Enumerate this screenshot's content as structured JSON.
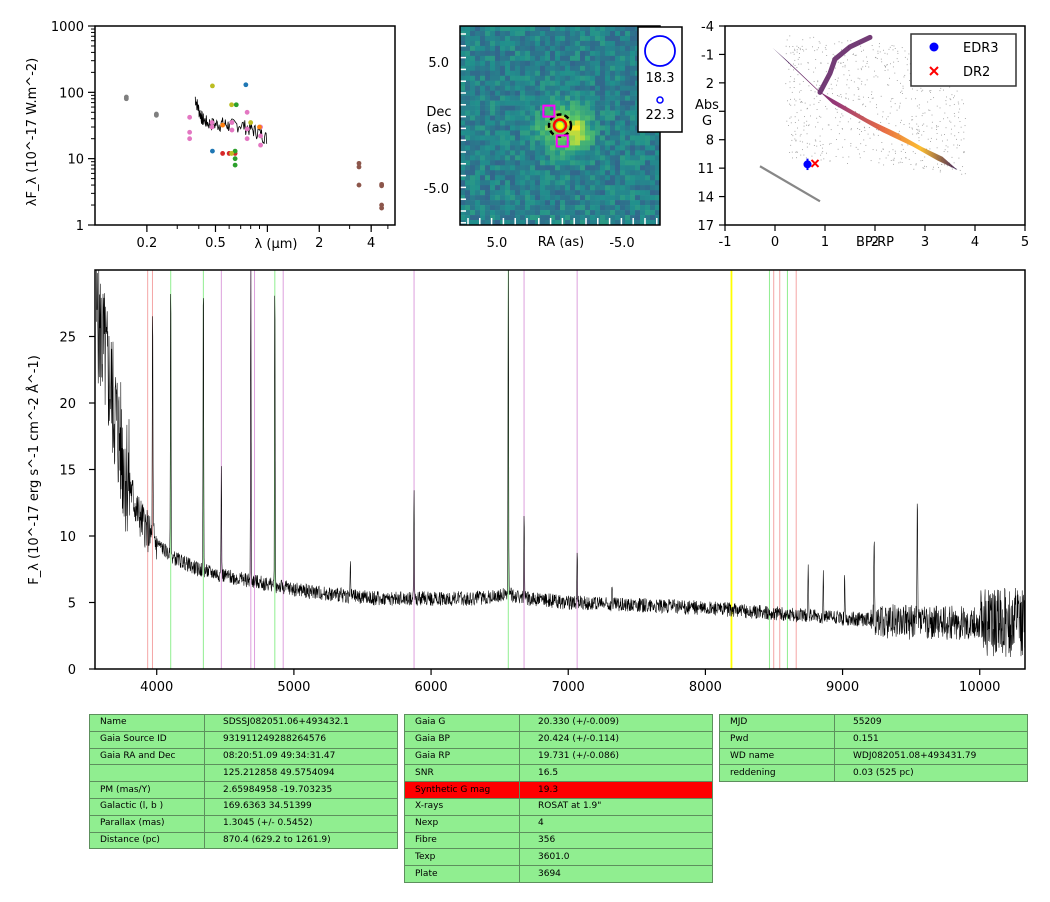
{
  "sed_panel": {
    "ylabel": "λF_λ (10^-17 W.m^-2)",
    "xlabel": "λ (μm)",
    "y_ticks": [
      "1",
      "10",
      "100",
      "1000"
    ],
    "x_ticks": [
      "0.2",
      "0.5",
      "1",
      "2",
      "4"
    ]
  },
  "image_panel": {
    "xlabel": "RA (as)",
    "ylabel_line1": "Dec",
    "ylabel_line2": "(as)",
    "x_ticks": [
      "5.0",
      "-5.0"
    ],
    "y_ticks": [
      "5.0",
      "-5.0"
    ],
    "legend": [
      {
        "label": "18.3"
      },
      {
        "label": "22.3"
      }
    ]
  },
  "hr_panel": {
    "xlabel": "BP-RP",
    "ylabel_line1": "Abs",
    "ylabel_line2": "G",
    "x_ticks": [
      "-1",
      "0",
      "1",
      "2",
      "3",
      "4",
      "5"
    ],
    "y_ticks": [
      "-4",
      "-1",
      "2",
      "5",
      "8",
      "11",
      "14",
      "17"
    ],
    "legend": [
      {
        "label": "EDR3",
        "color": "#0000ff",
        "marker": "circle"
      },
      {
        "label": "DR2",
        "color": "#ff0000",
        "marker": "cross"
      }
    ]
  },
  "spectrum_panel": {
    "ylabel": "F_λ (10^-17 erg s^-1 cm^-2 Å^-1)",
    "x_ticks": [
      "4000",
      "5000",
      "6000",
      "7000",
      "8000",
      "9000",
      "10000"
    ],
    "y_ticks": [
      "0",
      "5",
      "10",
      "15",
      "20",
      "25"
    ]
  },
  "chart_data": [
    {
      "type": "scatter",
      "title": "",
      "xlabel": "λ (μm)",
      "ylabel": "λF_λ (10^-17 W.m^-2)",
      "xscale": "log",
      "yscale": "log",
      "xlim": [
        0.1,
        5.5
      ],
      "ylim": [
        1,
        1000
      ],
      "series": [
        {
          "color": "#7f7f7f",
          "points": [
            [
              0.152,
              80
            ],
            [
              0.152,
              85
            ],
            [
              0.227,
              45
            ],
            [
              0.227,
              47
            ]
          ]
        },
        {
          "color": "#e377c2",
          "points": [
            [
              0.354,
              20
            ],
            [
              0.354,
              25
            ],
            [
              0.354,
              42
            ],
            [
              0.477,
              30
            ],
            [
              0.477,
              35
            ],
            [
              0.623,
              27
            ],
            [
              0.623,
              35
            ],
            [
              0.763,
              20
            ],
            [
              0.763,
              28
            ],
            [
              0.763,
              50
            ],
            [
              0.913,
              16
            ],
            [
              0.913,
              22
            ],
            [
              0.913,
              30
            ]
          ]
        },
        {
          "color": "#1f77b4",
          "points": [
            [
              0.48,
              13
            ],
            [
              0.75,
              130
            ]
          ]
        },
        {
          "color": "#d62728",
          "points": [
            [
              0.55,
              12
            ],
            [
              0.6,
              12
            ],
            [
              0.65,
              12
            ]
          ]
        },
        {
          "color": "#2ca02c",
          "points": [
            [
              0.65,
              8
            ],
            [
              0.65,
              10
            ],
            [
              0.65,
              13
            ],
            [
              0.66,
              65
            ]
          ]
        },
        {
          "color": "#bcbd22",
          "points": [
            [
              0.48,
              125
            ],
            [
              0.62,
              12
            ],
            [
              0.62,
              65
            ],
            [
              0.8,
              35
            ]
          ]
        },
        {
          "color": "#ff7f0e",
          "points": [
            [
              0.55,
              32
            ],
            [
              0.9,
              30
            ]
          ]
        },
        {
          "color": "#8c564b",
          "points": [
            [
              3.4,
              4
            ],
            [
              3.4,
              7.5
            ],
            [
              3.4,
              8.5
            ],
            [
              4.6,
              1.8
            ],
            [
              4.6,
              2
            ],
            [
              4.6,
              3.9
            ],
            [
              4.6,
              4.1
            ]
          ]
        }
      ],
      "line_series": {
        "color": "#000000",
        "x": [
          0.38,
          0.4,
          0.42,
          0.45,
          0.5,
          0.55,
          0.6,
          0.7,
          0.8,
          0.9,
          1.0
        ],
        "y": [
          85,
          55,
          40,
          35,
          33,
          34,
          32,
          33,
          28,
          25,
          20
        ]
      }
    },
    {
      "type": "heatmap",
      "title": "",
      "xlabel": "RA (as)",
      "ylabel": "Dec (as)",
      "xlim": [
        9,
        -9
      ],
      "ylim": [
        -9,
        9
      ],
      "markers": [
        {
          "kind": "target-cross",
          "ra": 0,
          "dec": 0,
          "color": "#ffff00"
        },
        {
          "kind": "circle",
          "ra": 0,
          "dec": 0,
          "color": "#ff0000"
        },
        {
          "kind": "square",
          "ra": 1.0,
          "dec": 1.3,
          "color": "#ff00ff"
        },
        {
          "kind": "square",
          "ra": -0.2,
          "dec": -1.4,
          "color": "#ff00ff"
        }
      ],
      "legend": [
        {
          "label": "18.3",
          "size": "large"
        },
        {
          "label": "22.3",
          "size": "small"
        }
      ]
    },
    {
      "type": "scatter",
      "title": "",
      "xlabel": "BP-RP",
      "ylabel": "Abs G",
      "xlim": [
        -1,
        5
      ],
      "ylim": [
        17,
        -4
      ],
      "series": [
        {
          "name": "EDR3",
          "color": "#0000ff",
          "marker": "circle",
          "points": [
            [
              0.65,
              10.6
            ]
          ],
          "yerr": [
            0.6
          ],
          "xerr": [
            0.08
          ]
        },
        {
          "name": "DR2",
          "color": "#ff0000",
          "marker": "cross",
          "points": [
            [
              0.8,
              10.5
            ]
          ]
        }
      ],
      "background": "Gaia HR diagram density (inferno colormap)"
    },
    {
      "type": "line",
      "title": "",
      "xlabel": "",
      "ylabel": "F_λ (10^-17 erg s^-1 cm^-2 Å^-1)",
      "xlim": [
        3550,
        10330
      ],
      "ylim": [
        0,
        30
      ],
      "continuum": [
        [
          3560,
          27
        ],
        [
          3650,
          22
        ],
        [
          3750,
          16
        ],
        [
          3850,
          12
        ],
        [
          3950,
          10
        ],
        [
          4100,
          8.5
        ],
        [
          4300,
          7.5
        ],
        [
          4500,
          7
        ],
        [
          4800,
          6.4
        ],
        [
          5000,
          6
        ],
        [
          5300,
          5.6
        ],
        [
          5600,
          5.3
        ],
        [
          6000,
          5.3
        ],
        [
          6300,
          5.3
        ],
        [
          6560,
          5.6
        ],
        [
          6700,
          5.3
        ],
        [
          7000,
          5.0
        ],
        [
          7500,
          4.8
        ],
        [
          8000,
          4.6
        ],
        [
          8500,
          4.2
        ],
        [
          9000,
          3.8
        ],
        [
          9500,
          3.5
        ],
        [
          10000,
          3.5
        ],
        [
          10300,
          3.5
        ]
      ],
      "emission_lines": [
        {
          "wl": 3970,
          "peak": 27
        },
        {
          "wl": 4102,
          "peak": 30
        },
        {
          "wl": 4340,
          "peak": 30
        },
        {
          "wl": 4471,
          "peak": 15
        },
        {
          "wl": 4686,
          "peak": 30
        },
        {
          "wl": 4861,
          "peak": 30
        },
        {
          "wl": 5412,
          "peak": 8
        },
        {
          "wl": 5876,
          "peak": 14
        },
        {
          "wl": 6563,
          "peak": 30
        },
        {
          "wl": 6678,
          "peak": 12
        },
        {
          "wl": 7065,
          "peak": 9
        },
        {
          "wl": 7320,
          "peak": 6.5
        },
        {
          "wl": 8750,
          "peak": 8
        },
        {
          "wl": 8860,
          "peak": 7
        },
        {
          "wl": 9015,
          "peak": 7
        },
        {
          "wl": 9230,
          "peak": 10
        },
        {
          "wl": 9545,
          "peak": 13
        }
      ],
      "vlines": [
        {
          "wl": 3934,
          "color": "#f4a6a6"
        },
        {
          "wl": 3969,
          "color": "#f4a6a6"
        },
        {
          "wl": 4102,
          "color": "#90ee90"
        },
        {
          "wl": 4340,
          "color": "#90ee90"
        },
        {
          "wl": 4471,
          "color": "#dda0dd"
        },
        {
          "wl": 4686,
          "color": "#dda0dd"
        },
        {
          "wl": 4713,
          "color": "#dda0dd"
        },
        {
          "wl": 4861,
          "color": "#90ee90"
        },
        {
          "wl": 4922,
          "color": "#dda0dd"
        },
        {
          "wl": 5876,
          "color": "#dda0dd"
        },
        {
          "wl": 6563,
          "color": "#90ee90"
        },
        {
          "wl": 6678,
          "color": "#dda0dd"
        },
        {
          "wl": 7065,
          "color": "#dda0dd"
        },
        {
          "wl": 8190,
          "color": "#ffff00"
        },
        {
          "wl": 8467,
          "color": "#90ee90"
        },
        {
          "wl": 8498,
          "color": "#f4a6a6"
        },
        {
          "wl": 8542,
          "color": "#f4a6a6"
        },
        {
          "wl": 8598,
          "color": "#90ee90"
        },
        {
          "wl": 8662,
          "color": "#f4a6a6"
        }
      ]
    }
  ],
  "tables": {
    "left": [
      {
        "key": "Name",
        "value": "SDSSJ082051.06+493432.1"
      },
      {
        "key": "Gaia Source ID",
        "value": "931911249288264576"
      },
      {
        "key": "Gaia RA and Dec",
        "value": "08:20:51.09     49:34:31.47"
      },
      {
        "key": "",
        "value": "125.212858     49.5754094"
      },
      {
        "key": "PM (mas/Y)",
        "value": "2.65984958     -19.703235"
      },
      {
        "key": "Galactic (l, b )",
        "value": "169.6363     34.51399"
      },
      {
        "key": "Parallax (mas)",
        "value": "1.3045 (+/- 0.5452)"
      },
      {
        "key": "Distance (pc)",
        "value": "870.4 (629.2 to 1261.9)"
      }
    ],
    "middle": [
      {
        "key": "Gaia G",
        "value": "20.330 (+/-0.009)"
      },
      {
        "key": "Gaia BP",
        "value": "20.424 (+/-0.114)"
      },
      {
        "key": "Gaia RP",
        "value": "19.731 (+/-0.086)"
      },
      {
        "key": "SNR",
        "value": "16.5"
      },
      {
        "key": "Synthetic G mag",
        "value": "19.3",
        "highlight": true
      },
      {
        "key": "X-rays",
        "value": "ROSAT at 1.9\""
      },
      {
        "key": "Nexp",
        "value": "4"
      },
      {
        "key": "Fibre",
        "value": "356"
      },
      {
        "key": "Texp",
        "value": "3601.0"
      },
      {
        "key": "Plate",
        "value": "3694"
      }
    ],
    "right": [
      {
        "key": "MJD",
        "value": "55209"
      },
      {
        "key": "Pwd",
        "value": "0.151"
      },
      {
        "key": "WD name",
        "value": "WDJ082051.08+493431.79"
      },
      {
        "key": "reddening",
        "value": "0.03 (525 pc)"
      }
    ]
  }
}
